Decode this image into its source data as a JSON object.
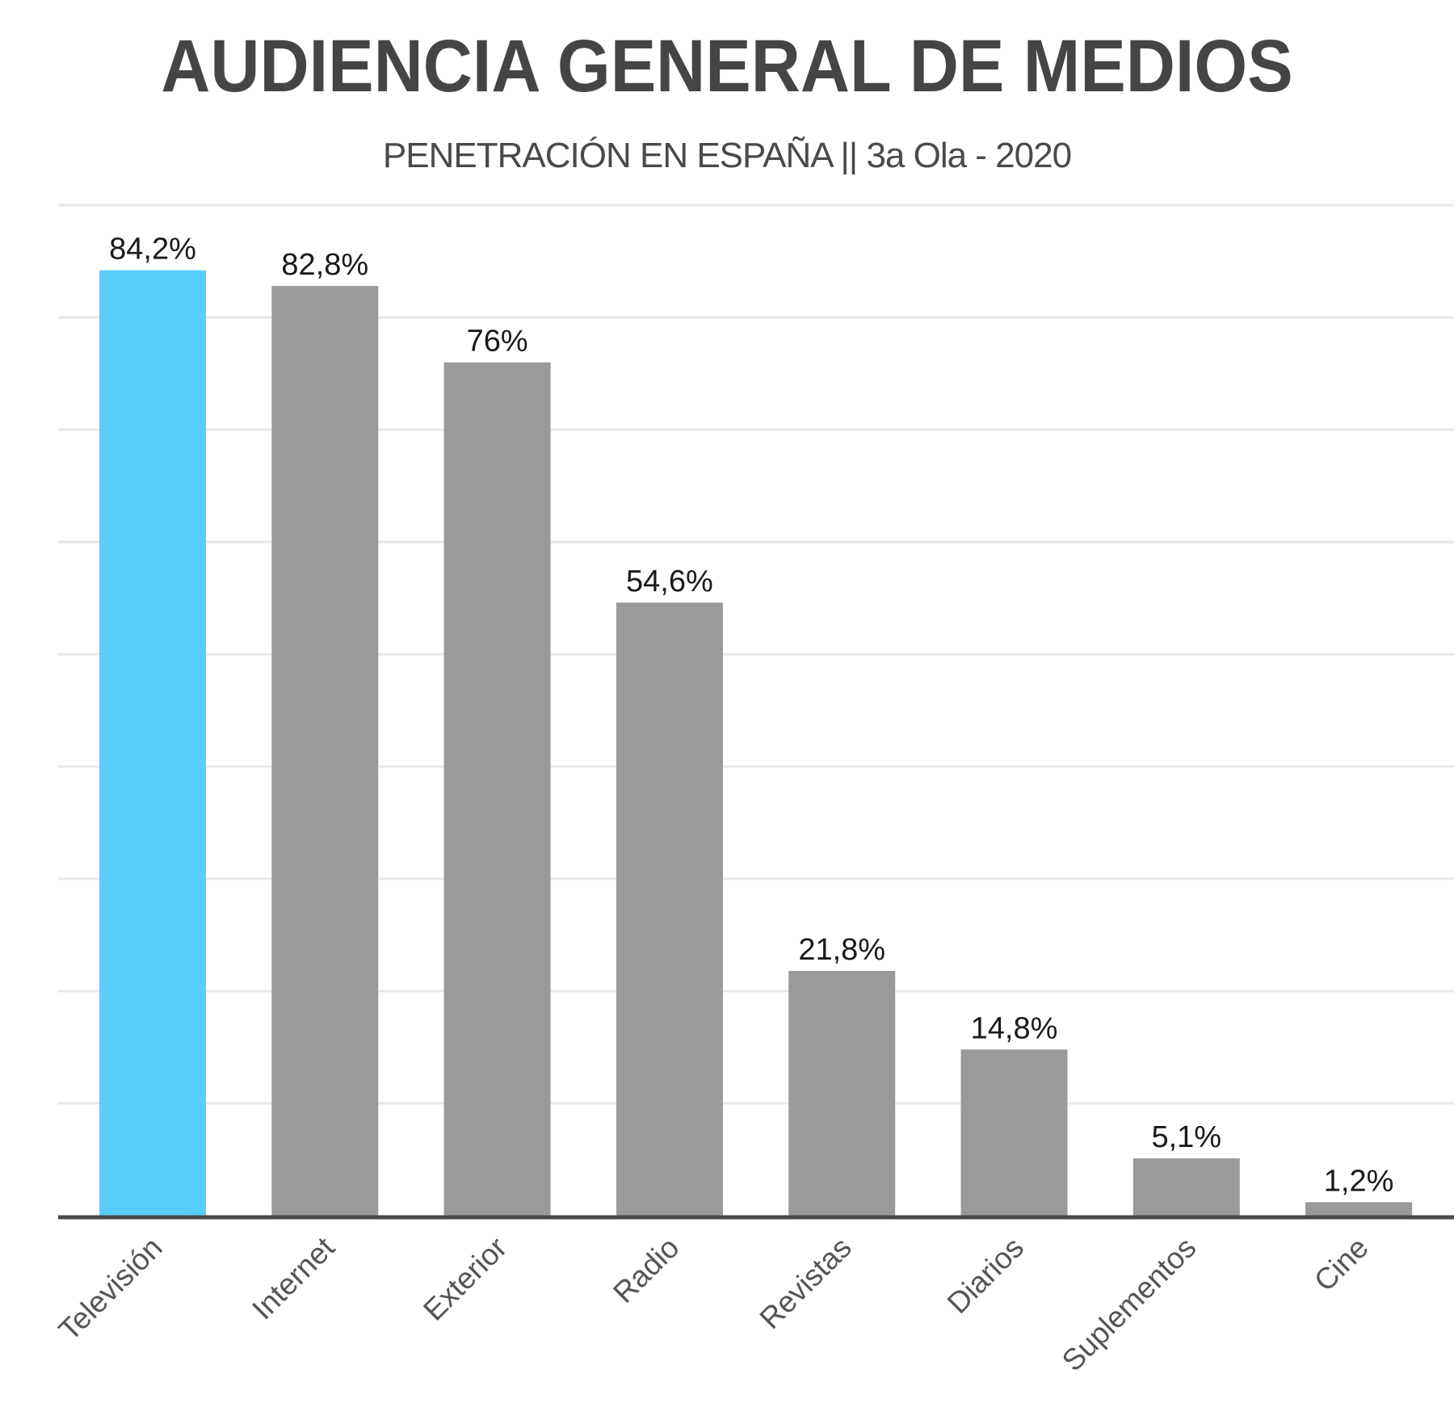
{
  "chart_data": {
    "type": "bar",
    "title": "AUDIENCIA GENERAL DE MEDIOS",
    "subtitle": "PENETRACIÓN EN ESPAÑA || 3a Ola - 2020",
    "xlabel": "",
    "ylabel": "",
    "categories": [
      "Televisión",
      "Internet",
      "Exterior",
      "Radio",
      "Revistas",
      "Diarios",
      "Suplementos",
      "Cine"
    ],
    "values": [
      84.2,
      82.8,
      76,
      54.6,
      21.8,
      14.8,
      5.1,
      1.2
    ],
    "value_labels": [
      "84,2%",
      "82,8%",
      "76%",
      "54,6%",
      "21,8%",
      "14,8%",
      "5,1%",
      "1,2%"
    ],
    "ylim": [
      0,
      90
    ],
    "grid": true,
    "colors": {
      "highlight": "#5bcdfc",
      "default": "#9a9a9a",
      "grid": "#e8e8e8",
      "axis": "#4a4a4a"
    },
    "highlight_index": 0
  }
}
